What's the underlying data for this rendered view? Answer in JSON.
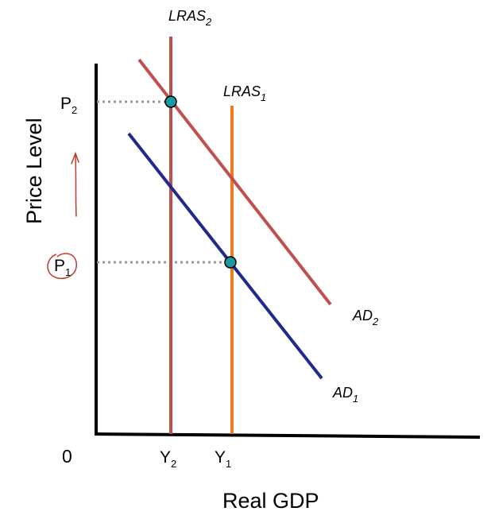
{
  "axes": {
    "y_label": "Price Level",
    "x_label": "Real GDP",
    "origin_label": "0"
  },
  "ticks": {
    "p2": {
      "main": "P",
      "sub": "2"
    },
    "p1": {
      "main": "P",
      "sub": "1"
    },
    "y2": {
      "main": "Y",
      "sub": "2"
    },
    "y1": {
      "main": "Y",
      "sub": "1"
    }
  },
  "curves": {
    "lras2": {
      "main": "LRAS",
      "sub": "2",
      "color": "#c0504d"
    },
    "lras1": {
      "main": "LRAS",
      "sub": "1",
      "color": "#f07a1e"
    },
    "ad2": {
      "main": "AD",
      "sub": "2",
      "color": "#c0504d"
    },
    "ad1": {
      "main": "AD",
      "sub": "1",
      "color": "#1f2a8c"
    }
  },
  "colors": {
    "equilibrium_point": "#1a9aa0",
    "annotation": "#c0392b",
    "dotted_guide": "#999999"
  },
  "annotations": {
    "arrow": "up-arrow-handwritten",
    "circle": "p1-handwritten-circle"
  }
}
